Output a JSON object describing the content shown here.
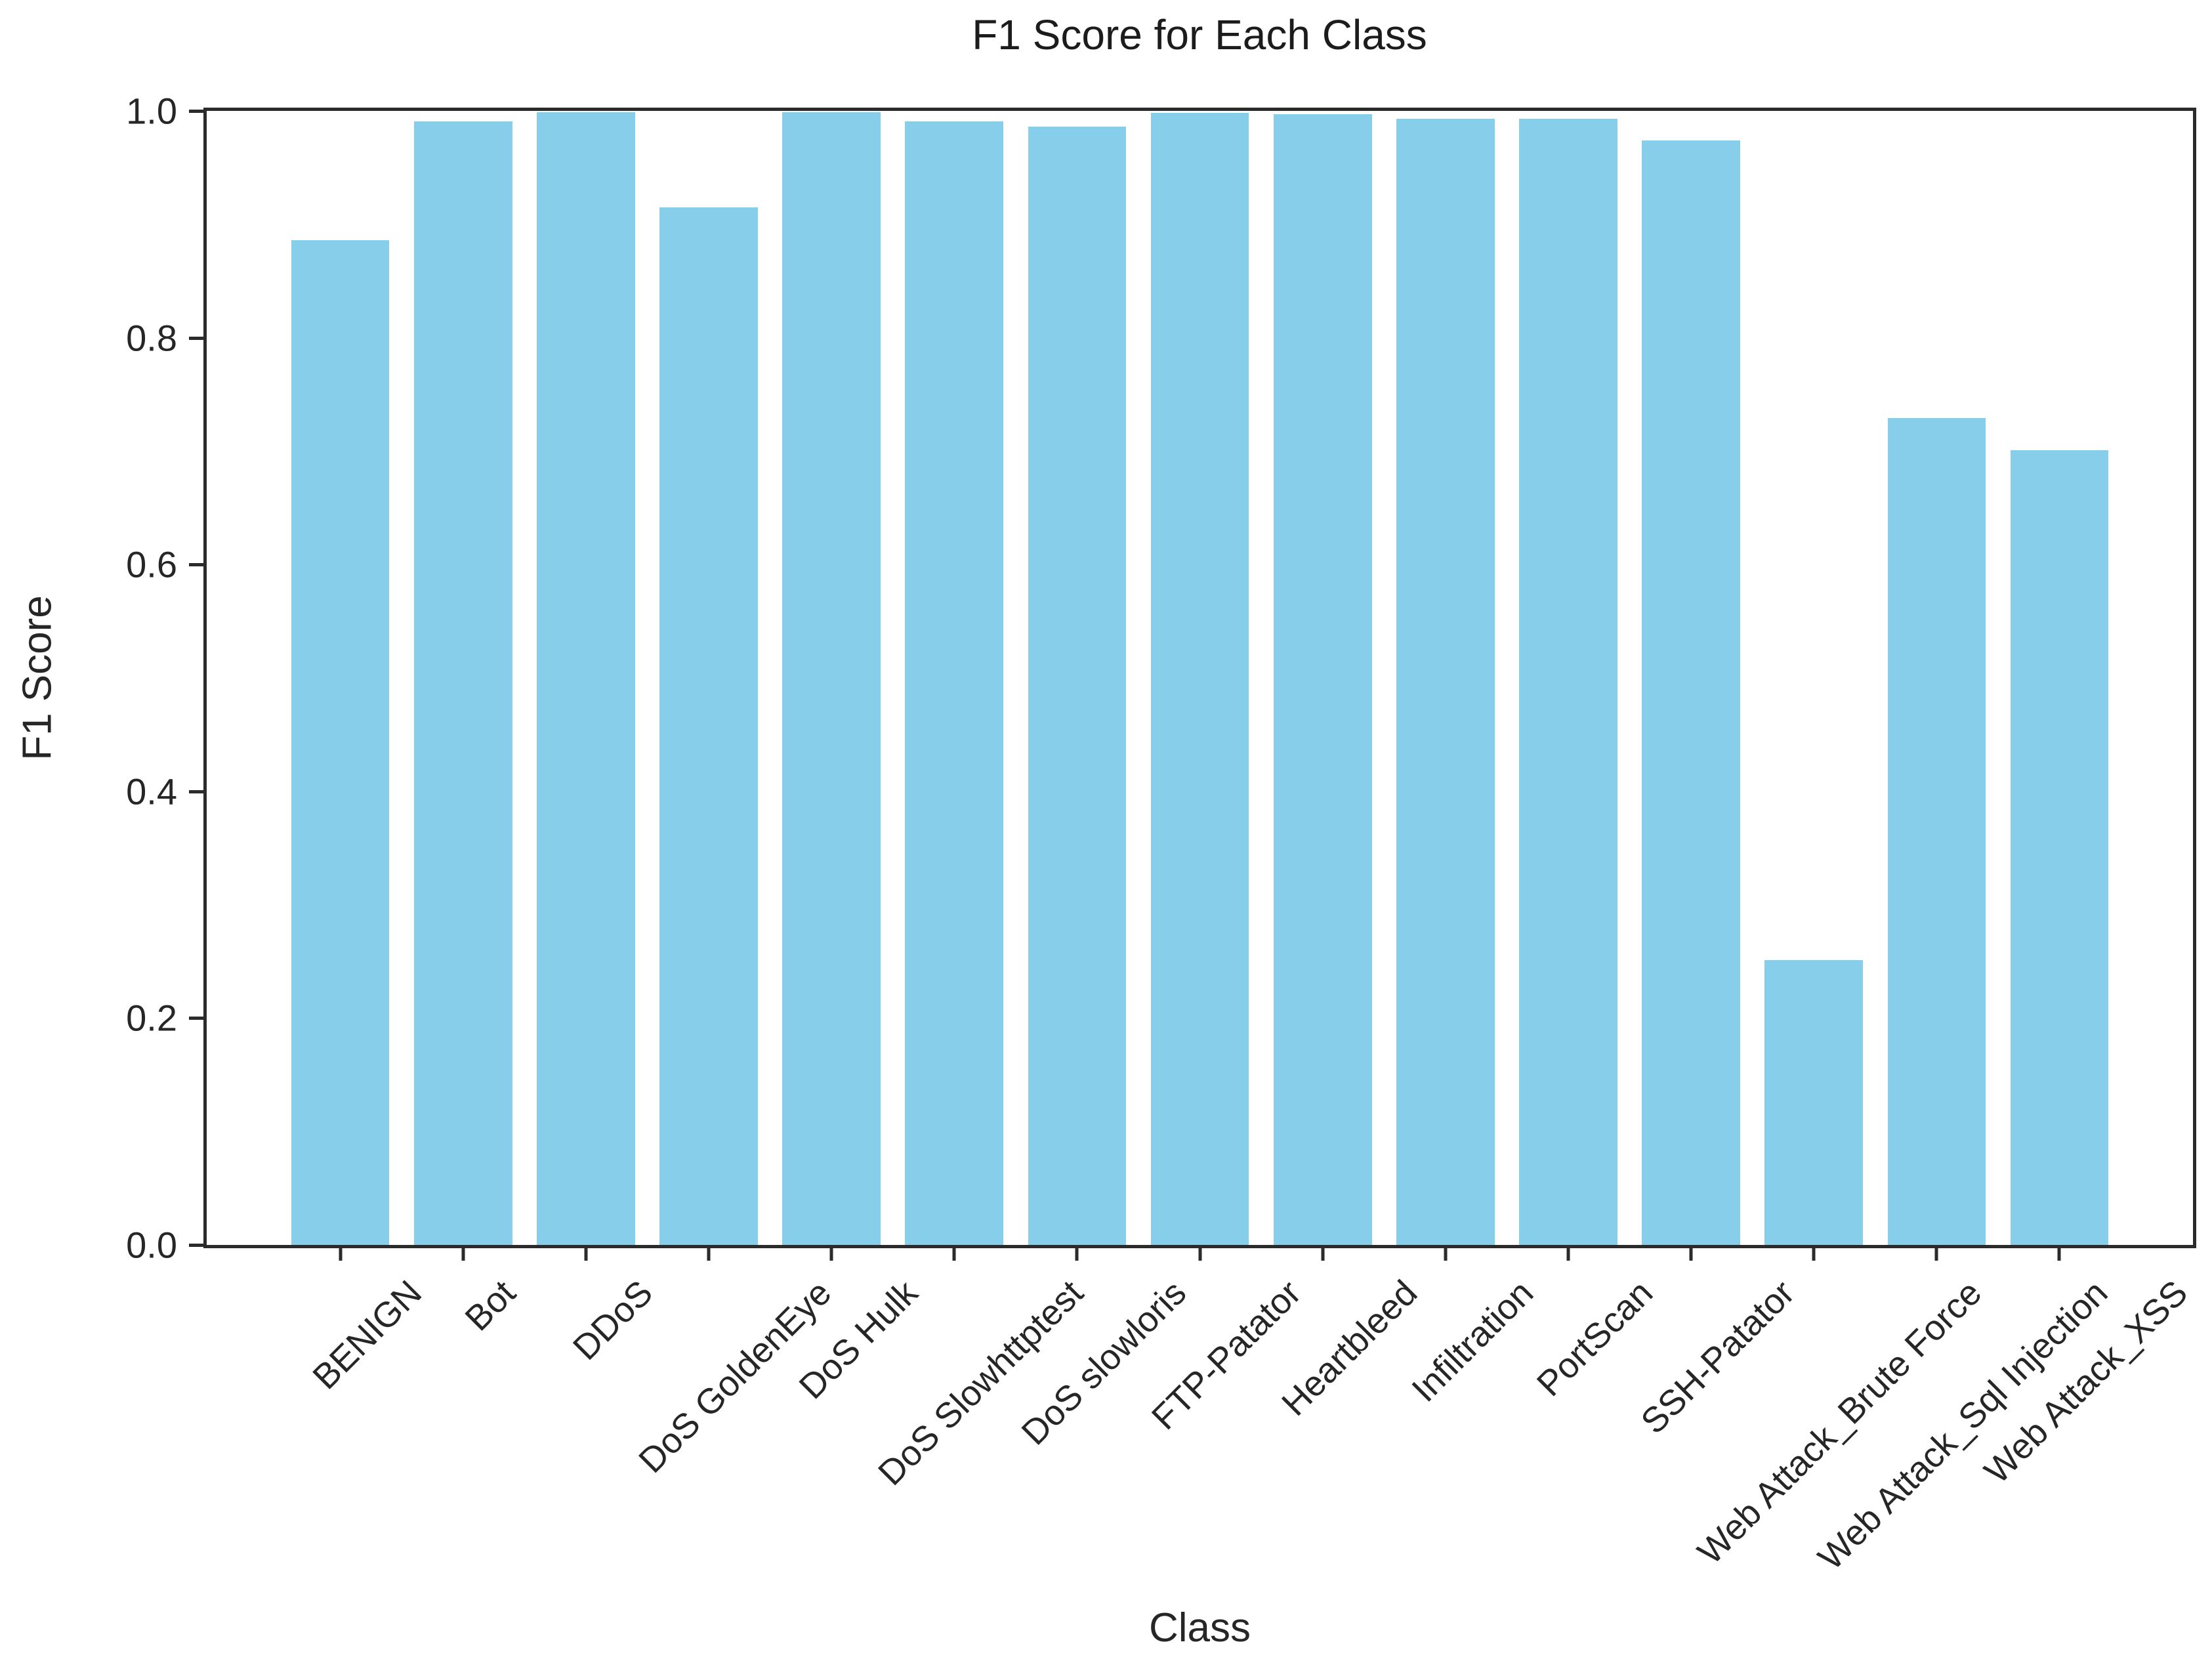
{
  "chart_data": {
    "type": "bar",
    "title": "F1 Score for Each Class",
    "xlabel": "Class",
    "ylabel": "F1 Score",
    "categories": [
      "BENIGN",
      "Bot",
      "DDoS",
      "DoS GoldenEye",
      "DoS Hulk",
      "DoS Slowhttptest",
      "DoS slowloris",
      "FTP-Patator",
      "Heartbleed",
      "Infiltration",
      "PortScan",
      "SSH-Patator",
      "Web Attack_Brute Force",
      "Web Attack_Sql Injection",
      "Web Attack_XSS"
    ],
    "values": [
      0.886,
      0.991,
      0.999,
      0.915,
      0.999,
      0.991,
      0.986,
      0.998,
      0.997,
      0.993,
      0.993,
      0.974,
      0.251,
      0.729,
      0.701
    ],
    "ylim": [
      0.0,
      1.0
    ],
    "yticks": [
      0.0,
      0.2,
      0.4,
      0.6,
      0.8,
      1.0
    ],
    "ytick_labels": [
      "0.0",
      "0.2",
      "0.4",
      "0.6",
      "0.8",
      "1.0"
    ],
    "x_tick_rotation": 45,
    "grid": false,
    "legend": null,
    "bar_color": "#87CEEB",
    "axis_color": "#2b2b2b",
    "text_color": "#262626"
  }
}
